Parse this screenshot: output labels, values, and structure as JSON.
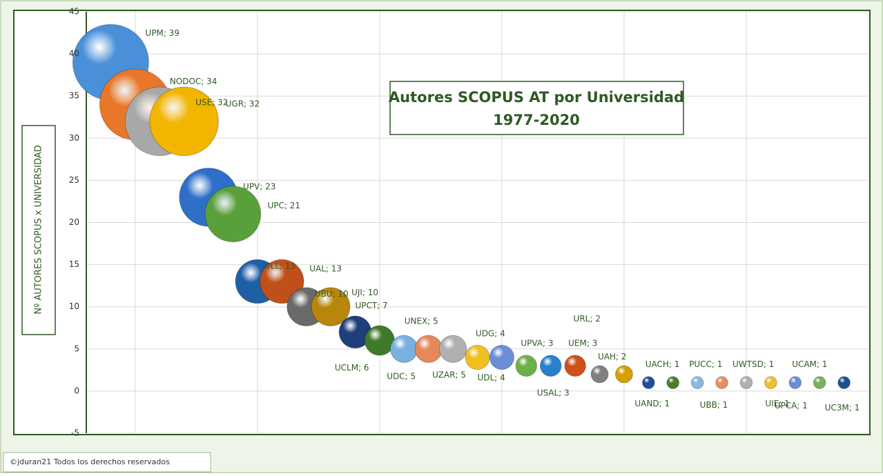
{
  "chart_data": {
    "type": "bubble",
    "title": "Autores SCOPUS AT por Universidad",
    "subtitle": "1977-2020",
    "y_label": "Nº AUTORES SCOPUS x UNIVERSIDAD",
    "copyright": "©jduran21 Todos los derechos reservados",
    "x": [
      1,
      2,
      3,
      4,
      5,
      6,
      7,
      8,
      9,
      10,
      11,
      12,
      13,
      14,
      15,
      16,
      17,
      18,
      19,
      20,
      21,
      22,
      23,
      24,
      25,
      26,
      27,
      28,
      29,
      30,
      31
    ],
    "values": [
      39,
      34,
      32,
      32,
      23,
      21,
      13,
      13,
      10,
      10,
      7,
      6,
      5,
      5,
      5,
      4,
      4,
      3,
      3,
      3,
      2,
      2,
      1,
      1,
      1,
      1,
      1,
      1,
      1,
      1,
      1
    ],
    "sizes": [
      39,
      34,
      32,
      32,
      23,
      21,
      13,
      13,
      10,
      10,
      7,
      6,
      5,
      5,
      5,
      4,
      4,
      3,
      3,
      3,
      2,
      2,
      1,
      1,
      1,
      1,
      1,
      1,
      1,
      1,
      1
    ],
    "value_labels": [
      "UPM; 39",
      "NODOC; 34",
      "USE; 32",
      "UGR; 32",
      "UPV; 23",
      "UPC; 21",
      "ULL; 13",
      "UAL; 13",
      "UBU; 10",
      "UJI; 10",
      "UPCT; 7",
      "UCLM; 6",
      "UDC; 5",
      "UNEX; 5",
      "UZAR; 5",
      "UDL; 4",
      "UDG; 4",
      "UPVA; 3",
      "USAL; 3",
      "UEM; 3",
      "URL; 2",
      "UAH; 2",
      "UAND; 1",
      "UACH; 1",
      "PUCC; 1",
      "UBB; 1",
      "UWTSD; 1",
      "UIE; 1",
      "UPCA; 1",
      "UCAM; 1",
      "UC3M; 1"
    ],
    "colors": [
      "#4a90d9",
      "#e9772a",
      "#a8a8a8",
      "#f2b500",
      "#2f6fc9",
      "#5aa03a",
      "#1f5fa5",
      "#c0501a",
      "#6a6a6a",
      "#b8860b",
      "#1e3f7a",
      "#3f7a2a",
      "#7ab0e0",
      "#e5885a",
      "#b0b0b0",
      "#f0c020",
      "#6a8fd8",
      "#6cb04a",
      "#2a80cc",
      "#d0501a",
      "#808080",
      "#d4a000",
      "#1e4fa0",
      "#4a7f2a",
      "#8ab8e0",
      "#e59060",
      "#b0b0b0",
      "#f0c030",
      "#6a8fd8",
      "#7ab060",
      "#1e4f90"
    ],
    "xlim": [
      0,
      32
    ],
    "xticks": [
      2,
      7,
      12,
      17,
      22,
      27
    ],
    "ylim": [
      -5,
      45
    ],
    "yticks": [
      -5,
      0,
      5,
      10,
      15,
      20,
      25,
      30,
      35,
      40,
      45
    ],
    "grid": true
  }
}
